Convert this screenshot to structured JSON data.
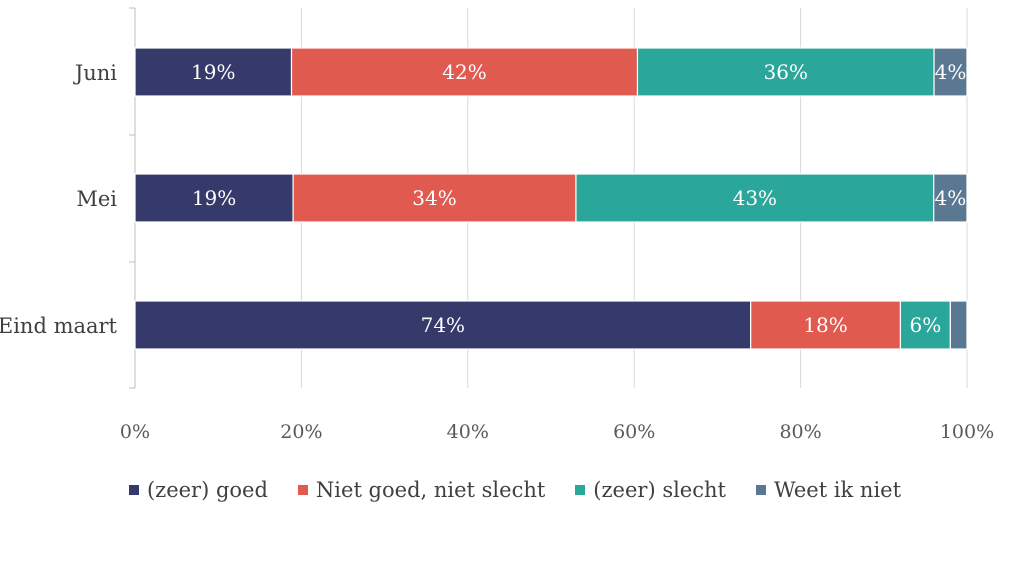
{
  "chart_data": {
    "type": "bar",
    "orientation": "horizontal",
    "stacked": true,
    "categories": [
      "Juni",
      "Mei",
      "Eind maart"
    ],
    "xlim": [
      0,
      100
    ],
    "xticks": [
      "0%",
      "20%",
      "40%",
      "60%",
      "80%",
      "100%"
    ],
    "grid": true,
    "legend_position": "bottom",
    "series": [
      {
        "name": "(zeer) goed",
        "color": "#363a6b",
        "values": [
          19,
          19,
          74
        ],
        "labels": [
          "19%",
          "19%",
          "74%"
        ]
      },
      {
        "name": "Niet goed, niet slecht",
        "color": "#e05a50",
        "values": [
          42,
          34,
          18
        ],
        "labels": [
          "42%",
          "34%",
          "18%"
        ]
      },
      {
        "name": "(zeer) slecht",
        "color": "#2aa69a",
        "values": [
          36,
          43,
          6
        ],
        "labels": [
          "36%",
          "43%",
          "6%"
        ]
      },
      {
        "name": "Weet ik niet",
        "color": "#5a7892",
        "values": [
          4,
          4,
          2
        ],
        "labels": [
          "4%",
          "4%",
          ""
        ]
      }
    ]
  }
}
